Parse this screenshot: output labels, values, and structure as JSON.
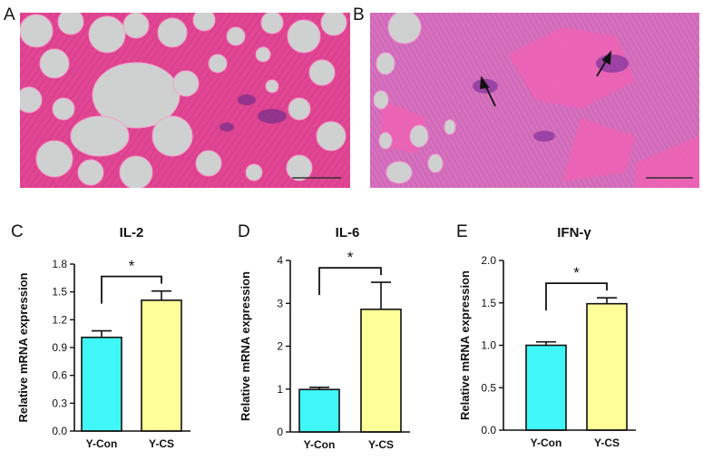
{
  "panels": {
    "a": "A",
    "b": "B",
    "c": "C",
    "d": "D",
    "e": "E"
  },
  "colors": {
    "con": "#3ff7f7",
    "cs": "#ffff99",
    "tissue": "#e0519b",
    "fat": "#cfd1d0"
  },
  "chart_data": [
    {
      "type": "bar",
      "title": "IL-2",
      "ylabel": "Relative mRNA expression",
      "categories": [
        "Y-Con",
        "Y-CS"
      ],
      "values": [
        1.01,
        1.41
      ],
      "errors": [
        0.07,
        0.1
      ],
      "ylim": [
        0,
        1.8
      ],
      "yticks": [
        0,
        0.3,
        0.6,
        0.9,
        1.2,
        1.5,
        1.8
      ],
      "yticklabels": [
        "0.0",
        "0.3",
        "0.6",
        "0.9",
        "1.2",
        "1.5",
        "1.8"
      ],
      "significance": "*"
    },
    {
      "type": "bar",
      "title": "IL-6",
      "ylabel": "Relative mRNA expression",
      "categories": [
        "Y-Con",
        "Y-CS"
      ],
      "values": [
        0.99,
        2.86
      ],
      "errors": [
        0.05,
        0.63
      ],
      "ylim": [
        0,
        4
      ],
      "yticks": [
        0,
        1,
        2,
        3,
        4
      ],
      "yticklabels": [
        "0",
        "1",
        "2",
        "3",
        "4"
      ],
      "significance": "*"
    },
    {
      "type": "bar",
      "title": "IFN-γ",
      "ylabel": "Relative mRNA expression",
      "categories": [
        "Y-Con",
        "Y-CS"
      ],
      "values": [
        1.0,
        1.49
      ],
      "errors": [
        0.04,
        0.07
      ],
      "ylim": [
        0,
        2.0
      ],
      "yticks": [
        0,
        0.5,
        1.0,
        1.5,
        2.0
      ],
      "yticklabels": [
        "0.0",
        "0.5",
        "1.0",
        "1.5",
        "2.0"
      ],
      "significance": "*"
    }
  ]
}
